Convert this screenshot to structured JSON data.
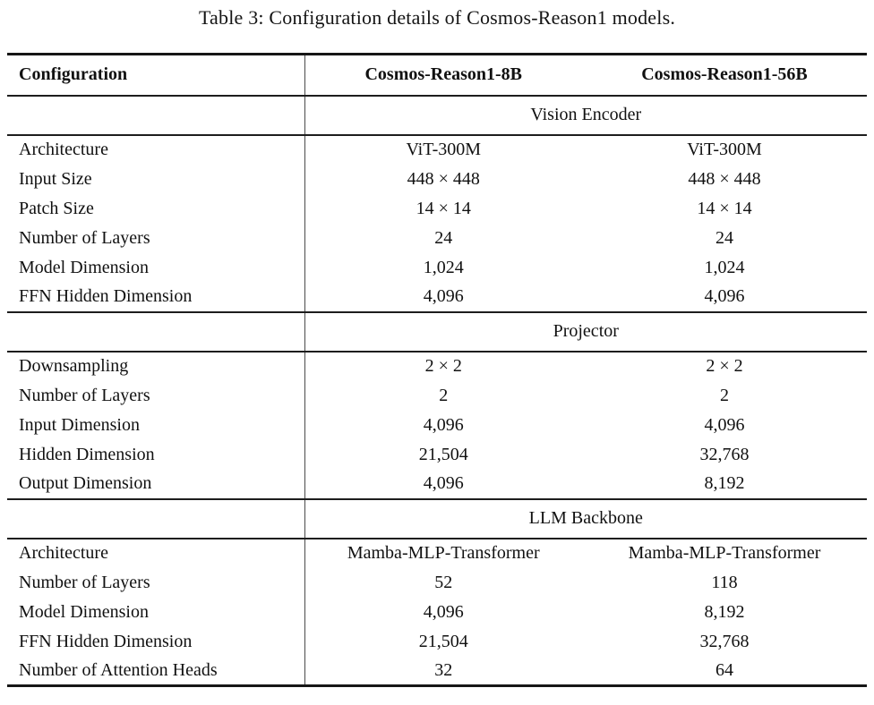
{
  "caption": "Table 3: Configuration details of Cosmos-Reason1 models.",
  "table": {
    "columns": [
      "Configuration",
      "Cosmos-Reason1-8B",
      "Cosmos-Reason1-56B"
    ],
    "sections": [
      {
        "name": "Vision Encoder",
        "rows": [
          {
            "label": "Architecture",
            "values": [
              "ViT-300M",
              "ViT-300M"
            ]
          },
          {
            "label": "Input Size",
            "values": [
              "448 × 448",
              "448 × 448"
            ]
          },
          {
            "label": "Patch Size",
            "values": [
              "14 × 14",
              "14 × 14"
            ]
          },
          {
            "label": "Number of Layers",
            "values": [
              "24",
              "24"
            ]
          },
          {
            "label": "Model Dimension",
            "values": [
              "1,024",
              "1,024"
            ]
          },
          {
            "label": "FFN Hidden Dimension",
            "values": [
              "4,096",
              "4,096"
            ]
          }
        ]
      },
      {
        "name": "Projector",
        "rows": [
          {
            "label": "Downsampling",
            "values": [
              "2 × 2",
              "2 × 2"
            ]
          },
          {
            "label": "Number of Layers",
            "values": [
              "2",
              "2"
            ]
          },
          {
            "label": "Input Dimension",
            "values": [
              "4,096",
              "4,096"
            ]
          },
          {
            "label": "Hidden Dimension",
            "values": [
              "21,504",
              "32,768"
            ]
          },
          {
            "label": "Output Dimension",
            "values": [
              "4,096",
              "8,192"
            ]
          }
        ]
      },
      {
        "name": "LLM Backbone",
        "rows": [
          {
            "label": "Architecture",
            "values": [
              "Mamba-MLP-Transformer",
              "Mamba-MLP-Transformer"
            ]
          },
          {
            "label": "Number of Layers",
            "values": [
              "52",
              "118"
            ]
          },
          {
            "label": "Model Dimension",
            "values": [
              "4,096",
              "8,192"
            ]
          },
          {
            "label": "FFN Hidden Dimension",
            "values": [
              "21,504",
              "32,768"
            ]
          },
          {
            "label": "Number of Attention Heads",
            "values": [
              "32",
              "64"
            ]
          }
        ]
      }
    ]
  }
}
